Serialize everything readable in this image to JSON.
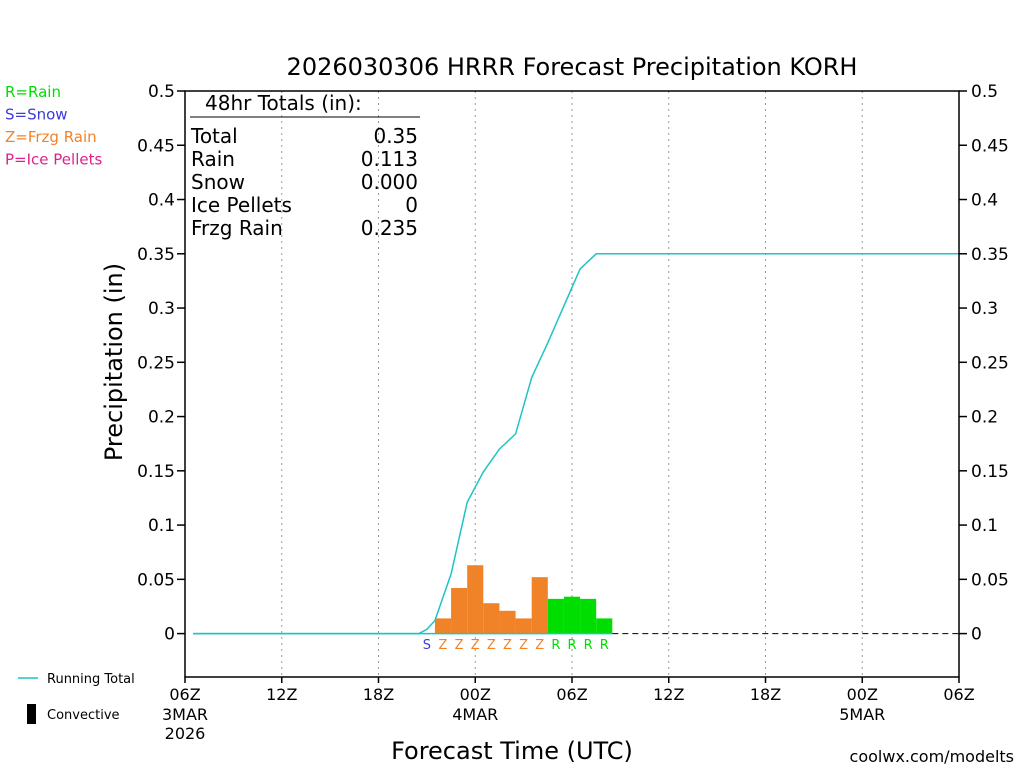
{
  "chart_data": {
    "type": "bar",
    "title": "2026030306 HRRR Forecast Precipitation KORH",
    "xlabel": "Forecast Time (UTC)",
    "ylabel": "Precipitation (in)",
    "ylim": [
      -0.04,
      0.5
    ],
    "xlim_hours": [
      0,
      48
    ],
    "y_ticks": [
      0,
      0.05,
      0.1,
      0.15,
      0.2,
      0.25,
      0.3,
      0.35,
      0.4,
      0.45,
      0.5
    ],
    "y_tick_labels": [
      "0",
      "0.05",
      "0.1",
      "0.15",
      "0.2",
      "0.25",
      "0.3",
      "0.35",
      "0.4",
      "0.45",
      "0.5"
    ],
    "x_ticks": [
      {
        "hour": 0,
        "label": "06Z",
        "date": "3MAR",
        "year": "2026"
      },
      {
        "hour": 6,
        "label": "12Z",
        "date": "",
        "year": ""
      },
      {
        "hour": 12,
        "label": "18Z",
        "date": "",
        "year": ""
      },
      {
        "hour": 18,
        "label": "00Z",
        "date": "4MAR",
        "year": ""
      },
      {
        "hour": 24,
        "label": "06Z",
        "date": "",
        "year": ""
      },
      {
        "hour": 30,
        "label": "12Z",
        "date": "",
        "year": ""
      },
      {
        "hour": 36,
        "label": "18Z",
        "date": "",
        "year": ""
      },
      {
        "hour": 42,
        "label": "00Z",
        "date": "5MAR",
        "year": ""
      },
      {
        "hour": 48,
        "label": "06Z",
        "date": "",
        "year": ""
      }
    ],
    "bars": [
      {
        "hour": 15,
        "value": 0.0,
        "ptype": "S"
      },
      {
        "hour": 16,
        "value": 0.014,
        "ptype": "Z"
      },
      {
        "hour": 17,
        "value": 0.042,
        "ptype": "Z"
      },
      {
        "hour": 18,
        "value": 0.063,
        "ptype": "Z"
      },
      {
        "hour": 19,
        "value": 0.028,
        "ptype": "Z"
      },
      {
        "hour": 20,
        "value": 0.021,
        "ptype": "Z"
      },
      {
        "hour": 21,
        "value": 0.014,
        "ptype": "Z"
      },
      {
        "hour": 22,
        "value": 0.052,
        "ptype": "Z"
      },
      {
        "hour": 23,
        "value": 0.032,
        "ptype": "R"
      },
      {
        "hour": 24,
        "value": 0.034,
        "ptype": "R"
      },
      {
        "hour": 25,
        "value": 0.032,
        "ptype": "R"
      },
      {
        "hour": 26,
        "value": 0.014,
        "ptype": "R"
      }
    ],
    "series": [
      {
        "name": "Running Total",
        "color": "#1ec4c4",
        "x": [
          0.5,
          14.5,
          15,
          15.5,
          16.5,
          17.5,
          18.5,
          19.5,
          20.5,
          21.5,
          22.5,
          23.5,
          24.5,
          25.5,
          26.5,
          48
        ],
        "values": [
          0,
          0,
          0.004,
          0.012,
          0.055,
          0.121,
          0.149,
          0.17,
          0.184,
          0.236,
          0.268,
          0.302,
          0.336,
          0.35,
          0.35,
          0.35
        ]
      }
    ],
    "zero_line_from_hour": 26.5,
    "ptype_colors": {
      "R": "#00dd00",
      "S": "#3b3bdb",
      "Z": "#f08228",
      "P": "#e0208a"
    },
    "totals": {
      "header": "48hr Totals (in):",
      "rows": [
        {
          "label": "Total",
          "value": "0.35"
        },
        {
          "label": "Rain",
          "value": "0.113"
        },
        {
          "label": "Snow",
          "value": "0.000"
        },
        {
          "label": "Ice Pellets",
          "value": "0"
        },
        {
          "label": "Frzg Rain",
          "value": "0.235"
        }
      ]
    },
    "ptype_legend": [
      {
        "code": "R",
        "text": "R=Rain",
        "color": "#00dd00"
      },
      {
        "code": "S",
        "text": "S=Snow",
        "color": "#3b3bdb"
      },
      {
        "code": "Z",
        "text": "Z=Frzg Rain",
        "color": "#f08228"
      },
      {
        "code": "P",
        "text": "P=Ice Pellets",
        "color": "#e0208a"
      }
    ],
    "series_legend": [
      {
        "text": "Running Total",
        "kind": "line",
        "color": "#1ec4c4"
      },
      {
        "text": "Convective",
        "kind": "bar",
        "color": "#000000"
      }
    ],
    "credit": "coolwx.com/modelts",
    "credit_color": "#e03040"
  }
}
